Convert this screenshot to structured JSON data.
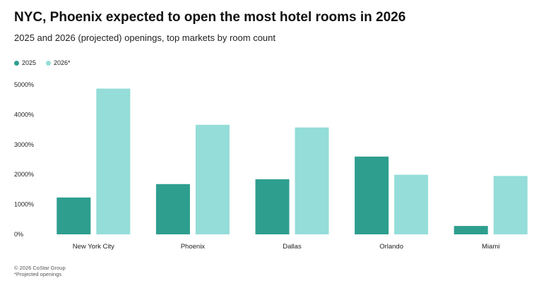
{
  "title": "NYC, Phoenix expected to open the most hotel rooms in 2026",
  "subtitle": "2025 and 2026 (projected) openings, top markets by room count",
  "colors": {
    "series_2025": "#2e9e8e",
    "series_2026": "#94ddd8"
  },
  "legend": [
    "2025",
    "2026*"
  ],
  "chart_data": {
    "type": "bar",
    "categories": [
      "New York City",
      "Phoenix",
      "Dallas",
      "Orlando",
      "Miami"
    ],
    "series": [
      {
        "name": "2025",
        "values": [
          1230,
          1680,
          1840,
          2600,
          280
        ]
      },
      {
        "name": "2026*",
        "values": [
          4870,
          3660,
          3570,
          1990,
          1950
        ]
      }
    ],
    "ylim": [
      0,
      5000
    ],
    "yticks": [
      "0%",
      "1000%",
      "2000%",
      "3000%",
      "4000%",
      "5000%"
    ],
    "grid": false,
    "legend_position": "top-left"
  },
  "footer": {
    "copyright": "© 2026 CoStar Group",
    "note": "*Projected openings"
  }
}
